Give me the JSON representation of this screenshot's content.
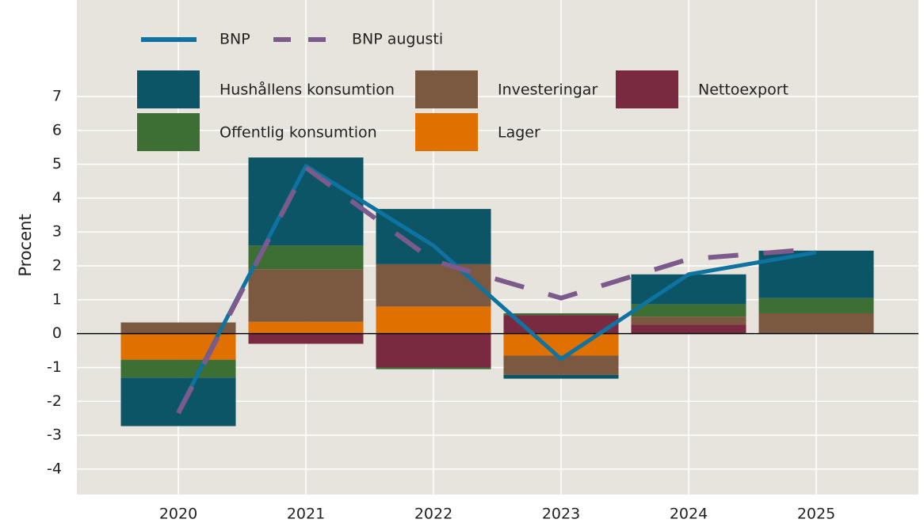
{
  "chart_data": {
    "type": "bar",
    "stacked": true,
    "y_label": "Procent",
    "categories": [
      "2020",
      "2021",
      "2022",
      "2023",
      "2024",
      "2025"
    ],
    "ylim": [
      -4.75,
      9.85
    ],
    "yticks": [
      -4,
      -3,
      -2,
      -1,
      0,
      1,
      2,
      3,
      4,
      5,
      6,
      7
    ],
    "grid": true,
    "legend": "top-left",
    "series": [
      {
        "name": "BNP",
        "type": "line",
        "color": "#0e73a0",
        "values": [
          -2.3,
          4.95,
          2.6,
          -0.75,
          1.75,
          2.4
        ]
      },
      {
        "name": "BNP augusti",
        "type": "line",
        "dashed": true,
        "color": "#7d5a8c",
        "values": [
          -2.35,
          4.9,
          2.15,
          1.05,
          2.2,
          2.5
        ]
      },
      {
        "name": "Hushållens konsumtion",
        "color": "#0b5566",
        "values": [
          -1.43,
          2.6,
          1.63,
          -0.11,
          0.88,
          1.4
        ]
      },
      {
        "name": "Investeringar",
        "color": "#7b5840",
        "values": [
          0.33,
          1.55,
          1.25,
          -0.57,
          0.23,
          0.6
        ]
      },
      {
        "name": "Nettoexport",
        "color": "#7a2a40",
        "values": [
          0,
          -0.3,
          -1.0,
          0.55,
          0.27,
          0
        ]
      },
      {
        "name": "Offentlig konsumtion",
        "color": "#3d6e33",
        "values": [
          -0.53,
          0.7,
          -0.05,
          0.05,
          0.37,
          0.45
        ]
      },
      {
        "name": "Lager",
        "color": "#e07000",
        "values": [
          -0.77,
          0.35,
          0.8,
          -0.65,
          0,
          0
        ]
      }
    ]
  }
}
